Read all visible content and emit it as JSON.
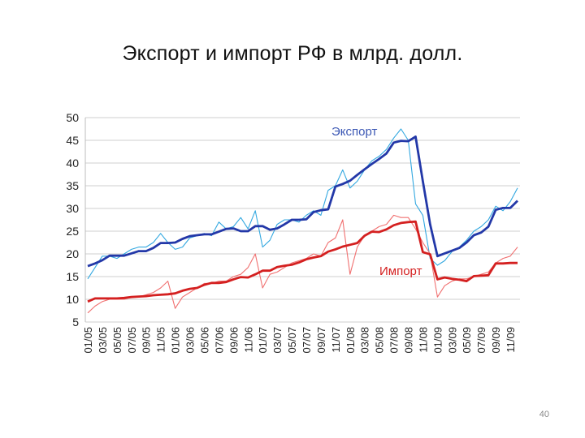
{
  "title": "Экспорт и импорт РФ в млрд. долл.",
  "page_number": "40",
  "chart_data": {
    "type": "line",
    "title": "Экспорт и импорт РФ в млрд. долл.",
    "xlabel": "",
    "ylabel": "",
    "ylim": [
      5,
      50
    ],
    "yticks": [
      5,
      10,
      15,
      20,
      25,
      30,
      35,
      40,
      45,
      50
    ],
    "grid": true,
    "legend": "inline labels",
    "tick_labels": [
      "01/05",
      "03/05",
      "05/05",
      "07/05",
      "09/05",
      "11/05",
      "01/06",
      "03/06",
      "05/06",
      "07/06",
      "09/06",
      "11/06",
      "01/07",
      "03/07",
      "05/07",
      "07/07",
      "09/07",
      "11/07",
      "01/08",
      "03/08",
      "05/08",
      "07/08",
      "09/08",
      "11/08",
      "01/09",
      "03/09",
      "05/09",
      "07/09",
      "09/09",
      "11/09"
    ],
    "x": [
      "01/05",
      "02/05",
      "03/05",
      "04/05",
      "05/05",
      "06/05",
      "07/05",
      "08/05",
      "09/05",
      "10/05",
      "11/05",
      "12/05",
      "01/06",
      "02/06",
      "03/06",
      "04/06",
      "05/06",
      "06/06",
      "07/06",
      "08/06",
      "09/06",
      "10/06",
      "11/06",
      "12/06",
      "01/07",
      "02/07",
      "03/07",
      "04/07",
      "05/07",
      "06/07",
      "07/07",
      "08/07",
      "09/07",
      "10/07",
      "11/07",
      "12/07",
      "01/08",
      "02/08",
      "03/08",
      "04/08",
      "05/08",
      "06/08",
      "07/08",
      "08/08",
      "09/08",
      "10/08",
      "11/08",
      "12/08",
      "01/09",
      "02/09",
      "03/09",
      "04/09",
      "05/09",
      "06/09",
      "07/09",
      "08/09",
      "09/09",
      "10/09",
      "11/09",
      "12/09"
    ],
    "series": [
      {
        "name": "Экспорт",
        "role": "monthly",
        "color": "#33a8e0",
        "values": [
          14.5,
          17.0,
          19.5,
          19.5,
          19.0,
          20.0,
          21.0,
          21.5,
          21.5,
          22.5,
          24.5,
          22.5,
          21.0,
          21.5,
          23.5,
          24.0,
          24.5,
          24.0,
          27.0,
          25.5,
          26.0,
          28.0,
          25.5,
          29.5,
          21.5,
          23.0,
          26.5,
          27.5,
          27.5,
          27.0,
          28.5,
          29.5,
          28.5,
          34.0,
          35.0,
          38.5,
          34.5,
          36.0,
          38.5,
          40.5,
          41.5,
          43.0,
          45.5,
          47.5,
          45.0,
          31.0,
          28.5,
          19.0,
          17.5,
          18.5,
          20.5,
          21.5,
          23.0,
          25.0,
          26.0,
          27.5,
          30.5,
          29.5,
          31.5,
          34.5
        ]
      },
      {
        "name": "",
        "role": "trend",
        "color": "#2338a8",
        "values": [
          17.3,
          17.9,
          18.6,
          19.6,
          19.6,
          19.6,
          20.1,
          20.6,
          20.6,
          21.3,
          22.4,
          22.4,
          22.5,
          23.3,
          23.9,
          24.1,
          24.3,
          24.3,
          24.9,
          25.5,
          25.6,
          25.0,
          25.0,
          26.1,
          26.1,
          25.3,
          25.6,
          26.5,
          27.5,
          27.5,
          27.6,
          29.2,
          29.6,
          29.8,
          34.8,
          35.4,
          36.1,
          37.4,
          38.6,
          39.8,
          40.9,
          42.1,
          44.5,
          44.9,
          44.8,
          45.8,
          36.0,
          26.5,
          19.5,
          20.1,
          20.7,
          21.3,
          22.5,
          24.1,
          24.7,
          26.0,
          29.7,
          30.1,
          30.1,
          31.7
        ]
      },
      {
        "name": "Импорт",
        "role": "monthly",
        "color": "#f07070",
        "values": [
          7.0,
          8.5,
          9.5,
          10.0,
          10.0,
          10.0,
          10.5,
          10.5,
          11.0,
          11.5,
          12.5,
          14.0,
          8.0,
          10.5,
          11.5,
          12.5,
          13.5,
          13.5,
          14.0,
          14.0,
          15.0,
          15.5,
          17.0,
          20.0,
          12.5,
          15.5,
          16.0,
          17.0,
          18.0,
          18.5,
          19.0,
          20.0,
          19.5,
          22.5,
          23.5,
          27.5,
          15.5,
          21.5,
          24.0,
          25.0,
          26.0,
          26.5,
          28.5,
          28.0,
          28.0,
          25.5,
          22.5,
          20.0,
          10.5,
          13.0,
          14.0,
          14.5,
          14.5,
          15.0,
          15.5,
          16.0,
          18.0,
          19.0,
          19.5,
          21.5
        ]
      },
      {
        "name": "",
        "role": "trend",
        "color": "#d42020",
        "values": [
          9.5,
          10.2,
          10.2,
          10.2,
          10.2,
          10.3,
          10.5,
          10.6,
          10.7,
          10.9,
          11.0,
          11.1,
          11.3,
          11.9,
          12.3,
          12.5,
          13.2,
          13.6,
          13.6,
          13.8,
          14.4,
          14.9,
          14.8,
          15.5,
          16.3,
          16.3,
          17.1,
          17.4,
          17.6,
          18.1,
          18.8,
          19.2,
          19.5,
          20.5,
          21.0,
          21.6,
          22.0,
          22.4,
          24.0,
          24.9,
          24.8,
          25.4,
          26.3,
          26.8,
          27.0,
          27.1,
          20.4,
          19.9,
          14.4,
          14.8,
          14.5,
          14.3,
          14.0,
          15.1,
          15.2,
          15.3,
          17.9,
          17.9,
          18.0,
          18.0
        ]
      }
    ]
  }
}
